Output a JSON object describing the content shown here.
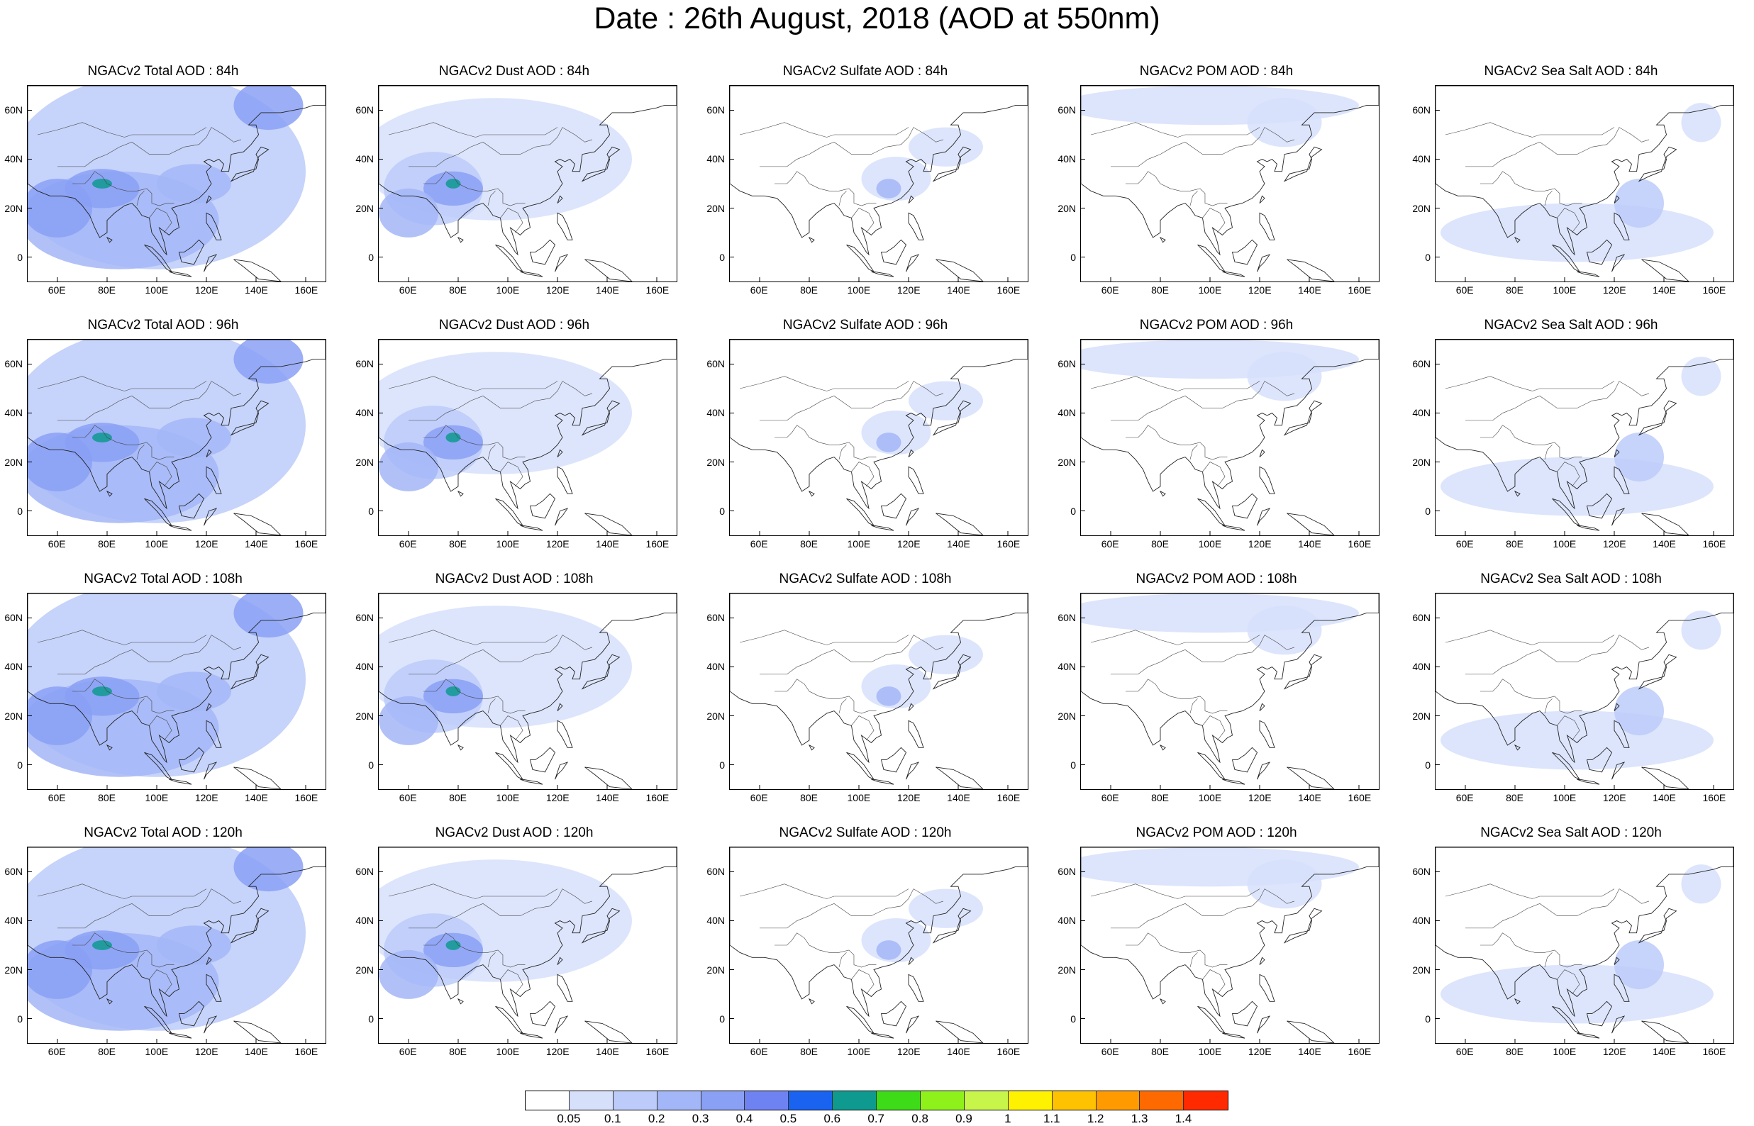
{
  "title": "Date : 26th August, 2018 (AOD at 550nm)",
  "panel_titles": [
    [
      "NGACv2 Total AOD : 84h",
      "NGACv2 Dust AOD : 84h",
      "NGACv2 Sulfate AOD : 84h",
      "NGACv2 POM AOD : 84h",
      "NGACv2 Sea Salt AOD : 84h"
    ],
    [
      "NGACv2 Total AOD : 96h",
      "NGACv2 Dust AOD : 96h",
      "NGACv2 Sulfate AOD : 96h",
      "NGACv2 POM AOD : 96h",
      "NGACv2 Sea Salt AOD : 96h"
    ],
    [
      "NGACv2 Total AOD : 108h",
      "NGACv2 Dust AOD : 108h",
      "NGACv2 Sulfate AOD : 108h",
      "NGACv2 POM AOD : 108h",
      "NGACv2 Sea Salt AOD : 108h"
    ],
    [
      "NGACv2 Total AOD : 120h",
      "NGACv2 Dust AOD : 120h",
      "NGACv2 Sulfate AOD : 120h",
      "NGACv2 POM AOD : 120h",
      "NGACv2 Sea Salt  AOD : 120h"
    ]
  ],
  "lat_labels": [
    "60N",
    "40N",
    "20N",
    "0"
  ],
  "lon_labels": [
    "60E",
    "80E",
    "100E",
    "120E",
    "140E",
    "160E"
  ],
  "colorbar": {
    "labels": [
      "0.05",
      "0.1",
      "0.2",
      "0.3",
      "0.4",
      "0.5",
      "0.6",
      "0.7",
      "0.8",
      "0.9",
      "1",
      "1.1",
      "1.2",
      "1.3",
      "1.4"
    ],
    "colors": [
      "#ffffff",
      "#d6e0fb",
      "#bccbf9",
      "#a3b6f7",
      "#8aa0f5",
      "#6f82f2",
      "#1a63f0",
      "#0e9a8e",
      "#3edb18",
      "#8ef21a",
      "#c7f54a",
      "#fff200",
      "#ffc200",
      "#ff9a00",
      "#ff6a00",
      "#ff2a00"
    ]
  }
}
